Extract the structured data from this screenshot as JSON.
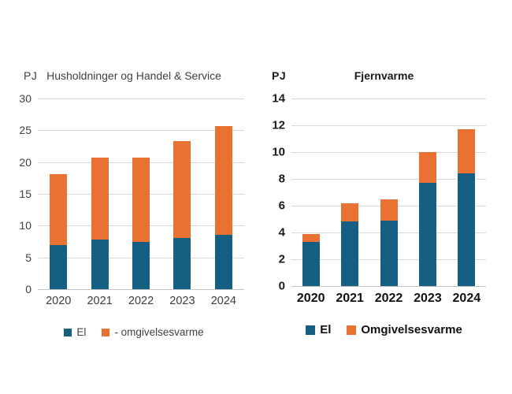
{
  "figure": {
    "background": "#ffffff",
    "grid_color": "#d9d9d9"
  },
  "chart_data": [
    {
      "type": "bar",
      "stacked": true,
      "title": "Husholdninger og Handel & Service",
      "unit_label": "PJ",
      "categories": [
        "2020",
        "2021",
        "2022",
        "2023",
        "2024"
      ],
      "series": [
        {
          "name": "El",
          "color": "#156082",
          "values": [
            7.0,
            7.8,
            7.5,
            8.1,
            8.5
          ]
        },
        {
          "name": "- omgivelsesvarme",
          "color": "#E97132",
          "values": [
            11.1,
            12.9,
            13.2,
            15.2,
            17.2
          ]
        }
      ],
      "totals": [
        18.1,
        20.7,
        20.7,
        23.3,
        25.7
      ],
      "ylim": [
        0,
        30
      ],
      "ytick_step": 5,
      "grid": true,
      "legend_position": "bottom"
    },
    {
      "type": "bar",
      "stacked": true,
      "title": "Fjernvarme",
      "unit_label": "PJ",
      "categories": [
        "2020",
        "2021",
        "2022",
        "2023",
        "2024"
      ],
      "series": [
        {
          "name": "El",
          "color": "#156082",
          "values": [
            3.3,
            4.8,
            4.9,
            7.7,
            8.4
          ]
        },
        {
          "name": "Omgivelsesvarme",
          "color": "#E97132",
          "values": [
            0.6,
            1.4,
            1.6,
            2.3,
            3.3
          ]
        }
      ],
      "totals": [
        3.9,
        6.2,
        6.5,
        10.0,
        11.7
      ],
      "ylim": [
        0,
        14
      ],
      "ytick_step": 2,
      "grid": true,
      "legend_position": "bottom"
    }
  ]
}
